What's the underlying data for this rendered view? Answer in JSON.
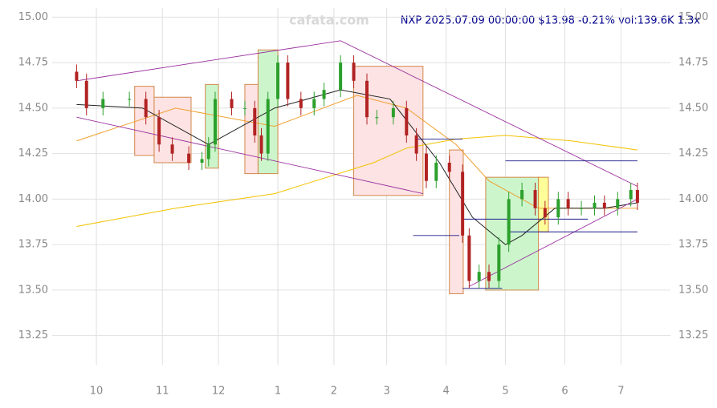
{
  "chart_data": {
    "type": "candlestick",
    "title": "NXP 2025.07.09 00:00:00 $13.98 -0.21% vol:139.6K 1.3x",
    "watermark": "cafata.com",
    "xlim": [
      -7.4,
      180
    ],
    "ylim": [
      13.09,
      15.05
    ],
    "xticks": [
      {
        "value": 6,
        "label": "10"
      },
      {
        "value": 26,
        "label": "11"
      },
      {
        "value": 43,
        "label": "12"
      },
      {
        "value": 61,
        "label": "1"
      },
      {
        "value": 78,
        "label": "2"
      },
      {
        "value": 94,
        "label": "3"
      },
      {
        "value": 112,
        "label": "4"
      },
      {
        "value": 130,
        "label": "5"
      },
      {
        "value": 148,
        "label": "6"
      },
      {
        "value": 165,
        "label": "7"
      }
    ],
    "yticks": [
      {
        "value": 13.25,
        "label": "13.25"
      },
      {
        "value": 13.5,
        "label": "13.50"
      },
      {
        "value": 13.75,
        "label": "13.75"
      },
      {
        "value": 14,
        "label": "14.00"
      },
      {
        "value": 14.25,
        "label": "14.25"
      },
      {
        "value": 14.5,
        "label": "14.50"
      },
      {
        "value": 14.75,
        "label": "14.75"
      },
      {
        "value": 15,
        "label": "15.00"
      }
    ],
    "grid": true,
    "up_color": "#2ca02c",
    "down_color": "#b22222",
    "x": [
      0,
      3,
      8,
      16,
      21,
      25,
      29,
      34,
      38,
      40,
      42,
      47,
      51,
      54,
      56,
      58,
      61,
      64,
      68,
      72,
      75,
      80,
      84,
      88,
      91,
      96,
      100,
      103,
      106,
      109,
      113,
      117,
      119,
      122,
      125,
      128,
      131,
      135,
      139,
      142,
      146,
      149,
      153,
      157,
      160,
      164,
      168,
      170
    ],
    "open": [
      14.7,
      14.65,
      14.5,
      14.55,
      14.55,
      14.45,
      14.3,
      14.25,
      14.2,
      14.22,
      14.3,
      14.55,
      14.5,
      14.5,
      14.35,
      14.25,
      14.55,
      14.75,
      14.55,
      14.5,
      14.55,
      14.6,
      14.75,
      14.65,
      14.45,
      14.45,
      14.5,
      14.35,
      14.25,
      14.1,
      14.2,
      14.15,
      13.8,
      13.55,
      13.6,
      13.55,
      13.75,
      14.0,
      14.05,
      13.95,
      13.9,
      14.0,
      13.95,
      13.95,
      13.98,
      13.95,
      14.0,
      14.05
    ],
    "high": [
      14.74,
      14.69,
      14.59,
      14.59,
      14.59,
      14.49,
      14.34,
      14.29,
      14.26,
      14.34,
      14.59,
      14.59,
      14.54,
      14.54,
      14.39,
      14.59,
      14.79,
      14.79,
      14.59,
      14.59,
      14.64,
      14.79,
      14.79,
      14.69,
      14.49,
      14.54,
      14.54,
      14.39,
      14.29,
      14.24,
      14.24,
      14.19,
      13.84,
      13.64,
      13.64,
      13.79,
      14.04,
      14.09,
      14.09,
      13.99,
      14.04,
      14.04,
      13.99,
      14.02,
      14.02,
      14.04,
      14.09,
      14.09
    ],
    "low": [
      14.61,
      14.46,
      14.46,
      14.51,
      14.41,
      14.26,
      14.21,
      14.16,
      14.16,
      14.18,
      14.26,
      14.46,
      14.46,
      14.31,
      14.21,
      14.21,
      14.51,
      14.51,
      14.46,
      14.46,
      14.51,
      14.56,
      14.61,
      14.41,
      14.41,
      14.41,
      14.31,
      14.21,
      14.06,
      14.06,
      14.11,
      13.76,
      13.51,
      13.51,
      13.51,
      13.51,
      13.71,
      13.96,
      13.91,
      13.86,
      13.86,
      13.91,
      13.91,
      13.91,
      13.91,
      13.91,
      13.96,
      13.94
    ],
    "close": [
      14.65,
      14.5,
      14.55,
      14.55,
      14.45,
      14.3,
      14.25,
      14.2,
      14.22,
      14.3,
      14.55,
      14.5,
      14.5,
      14.35,
      14.25,
      14.55,
      14.75,
      14.55,
      14.5,
      14.55,
      14.6,
      14.75,
      14.65,
      14.45,
      14.45,
      14.5,
      14.35,
      14.25,
      14.1,
      14.2,
      14.15,
      13.8,
      13.55,
      13.6,
      13.55,
      13.75,
      14.0,
      14.05,
      13.95,
      13.9,
      14.0,
      13.95,
      13.95,
      13.98,
      13.95,
      14.0,
      14.05,
      13.98
    ],
    "boxes": [
      {
        "x0": 17.6,
        "x1": 23.5,
        "y0": 14.24,
        "y1": 14.62,
        "color": "#fde3e3"
      },
      {
        "x0": 23.5,
        "x1": 34.7,
        "y0": 14.2,
        "y1": 14.56,
        "color": "#fde3e3"
      },
      {
        "x0": 39,
        "x1": 43,
        "y0": 14.17,
        "y1": 14.63,
        "color": "#ccf5cc"
      },
      {
        "x0": 51,
        "x1": 55,
        "y0": 14.14,
        "y1": 14.63,
        "color": "#fde3e3"
      },
      {
        "x0": 55,
        "x1": 61,
        "y0": 14.14,
        "y1": 14.82,
        "color": "#ccf5cc"
      },
      {
        "x0": 84,
        "x1": 105,
        "y0": 14.02,
        "y1": 14.73,
        "color": "#fde3e3"
      },
      {
        "x0": 113,
        "x1": 117.2,
        "y0": 13.48,
        "y1": 14.27,
        "color": "#fde3e3"
      },
      {
        "x0": 124,
        "x1": 140,
        "y0": 13.5,
        "y1": 14.12,
        "color": "#ccf5cc"
      },
      {
        "x0": 140,
        "x1": 143,
        "y0": 13.82,
        "y1": 14.12,
        "color": "#ffff99"
      }
    ],
    "lines": [
      {
        "color": "#9b30a0",
        "x": [
          0,
          80,
          170
        ],
        "values": [
          14.65,
          14.87,
          14.07
        ]
      },
      {
        "color": "#9b30a0",
        "x": [
          0,
          105
        ],
        "values": [
          14.45,
          14.03
        ]
      },
      {
        "color": "#9b30a0",
        "x": [
          119,
          170
        ],
        "values": [
          13.52,
          14.0
        ]
      },
      {
        "color": "#1a1a8c",
        "x": [
          103,
          117
        ],
        "values": [
          14.33,
          14.33
        ]
      },
      {
        "color": "#1a1a8c",
        "x": [
          102,
          116
        ],
        "values": [
          13.8,
          13.8
        ]
      },
      {
        "color": "#1a1a8c",
        "x": [
          117,
          155
        ],
        "values": [
          13.89,
          13.89
        ]
      },
      {
        "color": "#1a1a8c",
        "x": [
          117,
          129
        ],
        "values": [
          13.51,
          13.51
        ]
      },
      {
        "color": "#1a1a8c",
        "x": [
          130,
          170
        ],
        "values": [
          14.21,
          14.21
        ]
      },
      {
        "color": "#1a1a8c",
        "x": [
          131,
          170
        ],
        "values": [
          13.82,
          13.82
        ]
      }
    ],
    "series": [
      {
        "color": "#f2c200",
        "x": [
          0,
          30,
          60,
          90,
          100,
          115,
          130,
          150,
          170
        ],
        "values": [
          13.85,
          13.95,
          14.03,
          14.2,
          14.28,
          14.33,
          14.35,
          14.32,
          14.27
        ]
      },
      {
        "color": "#f0a030",
        "x": [
          0,
          30,
          60,
          85,
          100,
          115,
          125,
          140,
          170
        ],
        "values": [
          14.32,
          14.5,
          14.4,
          14.57,
          14.5,
          14.3,
          14.1,
          13.95,
          13.95
        ]
      },
      {
        "color": "#222222",
        "x": [
          0,
          20,
          40,
          60,
          80,
          95,
          110,
          120,
          130,
          135,
          145,
          160,
          170
        ],
        "values": [
          14.52,
          14.5,
          14.3,
          14.5,
          14.6,
          14.55,
          14.2,
          13.9,
          13.75,
          13.8,
          13.95,
          13.95,
          13.98
        ]
      }
    ]
  }
}
